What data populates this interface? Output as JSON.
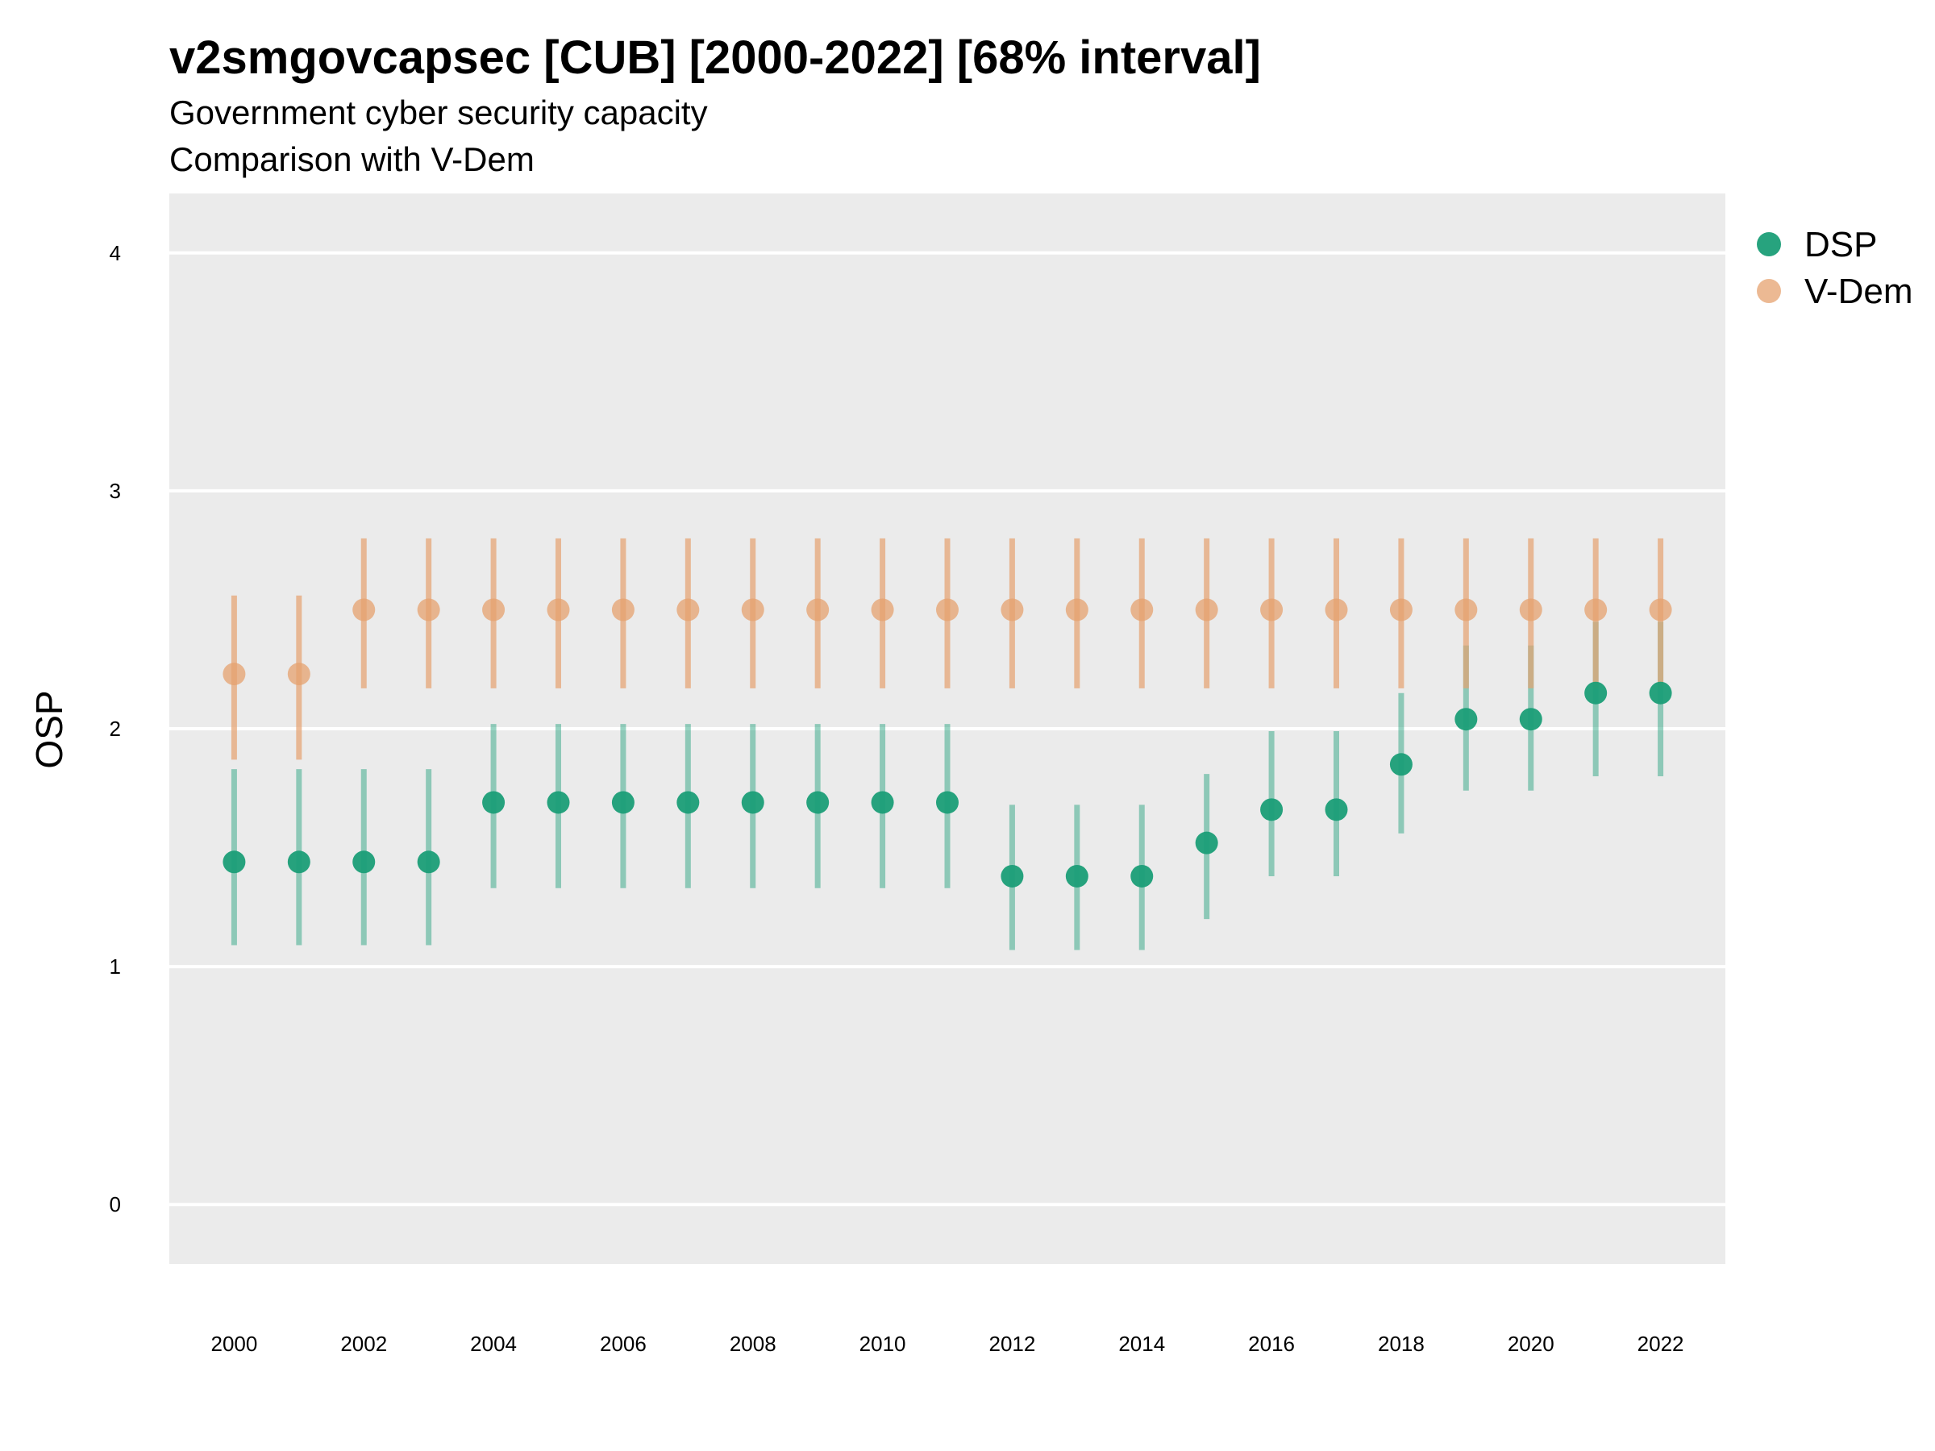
{
  "chart_data": {
    "type": "scatter",
    "title": "v2smgovcapsec [CUB] [2000-2022] [68% interval]",
    "subtitle": [
      "Government cyber security capacity",
      "Comparison with V-Dem"
    ],
    "xlabel": "",
    "ylabel": "OSP",
    "xlim": [
      1999,
      2023
    ],
    "ylim": [
      -0.25,
      4.25
    ],
    "yticks": [
      0,
      1,
      2,
      3,
      4
    ],
    "xticks": [
      2000,
      2002,
      2004,
      2006,
      2008,
      2010,
      2012,
      2014,
      2016,
      2018,
      2020,
      2022
    ],
    "grid": true,
    "legend_position": "right",
    "x": [
      2000,
      2001,
      2002,
      2003,
      2004,
      2005,
      2006,
      2007,
      2008,
      2009,
      2010,
      2011,
      2012,
      2013,
      2014,
      2015,
      2016,
      2017,
      2018,
      2019,
      2020,
      2021,
      2022
    ],
    "series": [
      {
        "name": "DSP",
        "color": "#1b9e77",
        "values": [
          1.44,
          1.44,
          1.44,
          1.44,
          1.69,
          1.69,
          1.69,
          1.69,
          1.69,
          1.69,
          1.69,
          1.69,
          1.38,
          1.38,
          1.38,
          1.52,
          1.66,
          1.66,
          1.85,
          2.04,
          2.04,
          2.15,
          2.15
        ],
        "lower": [
          1.09,
          1.09,
          1.09,
          1.09,
          1.33,
          1.33,
          1.33,
          1.33,
          1.33,
          1.33,
          1.33,
          1.33,
          1.07,
          1.07,
          1.07,
          1.2,
          1.38,
          1.38,
          1.56,
          1.74,
          1.74,
          1.8,
          1.8
        ],
        "upper": [
          1.83,
          1.83,
          1.83,
          1.83,
          2.02,
          2.02,
          2.02,
          2.02,
          2.02,
          2.02,
          2.02,
          2.02,
          1.68,
          1.68,
          1.68,
          1.81,
          1.99,
          1.99,
          2.15,
          2.35,
          2.35,
          2.45,
          2.45
        ]
      },
      {
        "name": "V-Dem",
        "color": "#e6a16f",
        "values": [
          2.23,
          2.23,
          2.5,
          2.5,
          2.5,
          2.5,
          2.5,
          2.5,
          2.5,
          2.5,
          2.5,
          2.5,
          2.5,
          2.5,
          2.5,
          2.5,
          2.5,
          2.5,
          2.5,
          2.5,
          2.5,
          2.5,
          2.5
        ],
        "lower": [
          1.87,
          1.87,
          2.17,
          2.17,
          2.17,
          2.17,
          2.17,
          2.17,
          2.17,
          2.17,
          2.17,
          2.17,
          2.17,
          2.17,
          2.17,
          2.17,
          2.17,
          2.17,
          2.17,
          2.17,
          2.17,
          2.17,
          2.17
        ],
        "upper": [
          2.56,
          2.56,
          2.8,
          2.8,
          2.8,
          2.8,
          2.8,
          2.8,
          2.8,
          2.8,
          2.8,
          2.8,
          2.8,
          2.8,
          2.8,
          2.8,
          2.8,
          2.8,
          2.8,
          2.8,
          2.8,
          2.8,
          2.8
        ]
      }
    ]
  }
}
